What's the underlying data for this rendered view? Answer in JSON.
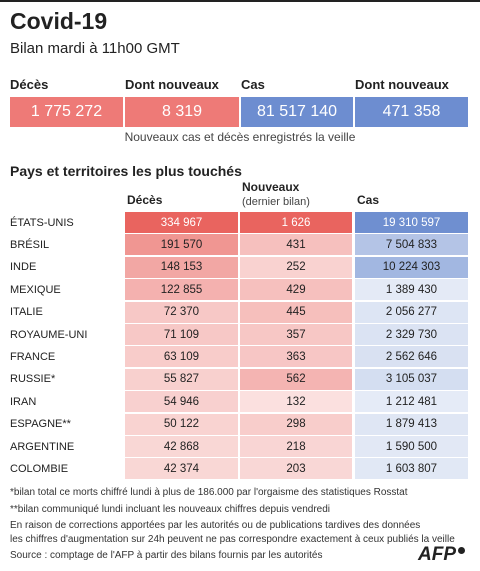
{
  "header": {
    "title": "Covid-19",
    "subtitle": "Bilan mardi à 11h00 GMT"
  },
  "summary": [
    {
      "label": "Décès",
      "value": "1 775 272"
    },
    {
      "label": "Dont nouveaux",
      "value": "8 319"
    },
    {
      "label": "Cas",
      "value": "81 517 140"
    },
    {
      "label": "Dont nouveaux",
      "value": "471 358"
    }
  ],
  "note": "Nouveaux cas et décès enregistrés la veille",
  "table": {
    "title": "Pays et territoires les plus touchés",
    "columns": {
      "deces": "Décès",
      "nouveaux": "Nouveaux",
      "nouveaux_sub": "(dernier bilan)",
      "cas": "Cas"
    },
    "rows": [
      [
        "ÉTATS-UNIS",
        "334 967",
        "1 626",
        "19 310 597"
      ],
      [
        "BRÉSIL",
        "191 570",
        "431",
        "7 504 833"
      ],
      [
        "INDE",
        "148 153",
        "252",
        "10 224 303"
      ],
      [
        "MEXIQUE",
        "122 855",
        "429",
        "1 389 430"
      ],
      [
        "ITALIE",
        "72 370",
        "445",
        "2 056 277"
      ],
      [
        "ROYAUME-UNI",
        "71 109",
        "357",
        "2 329 730"
      ],
      [
        "FRANCE",
        "63 109",
        "363",
        "2 562 646"
      ],
      [
        "RUSSIE*",
        "55 827",
        "562",
        "3 105 037"
      ],
      [
        "IRAN",
        "54 946",
        "132",
        "1 212 481"
      ],
      [
        "ESPAGNE**",
        "50 122",
        "298",
        "1 879 413"
      ],
      [
        "ARGENTINE",
        "42 868",
        "218",
        "1 590 500"
      ],
      [
        "COLOMBIE",
        "42 374",
        "203",
        "1 603 807"
      ]
    ]
  },
  "footnotes": [
    "*bilan total ce morts chiffré lundi à plus de 186.000 par l'orgaisme des statistiques Rosstat",
    "**bilan communiqué lundi incluant les nouveaux chiffres depuis vendredi",
    "En raison de corrections apportées par les autorités ou de publications tardives des données",
    "les chiffres d'augmentation sur 24h peuvent ne pas correspondre exactement à ceux publiés la veille",
    "Source : comptage de l'AFP à partir des bilans fournis par les autorités"
  ],
  "logo": "AFP"
}
